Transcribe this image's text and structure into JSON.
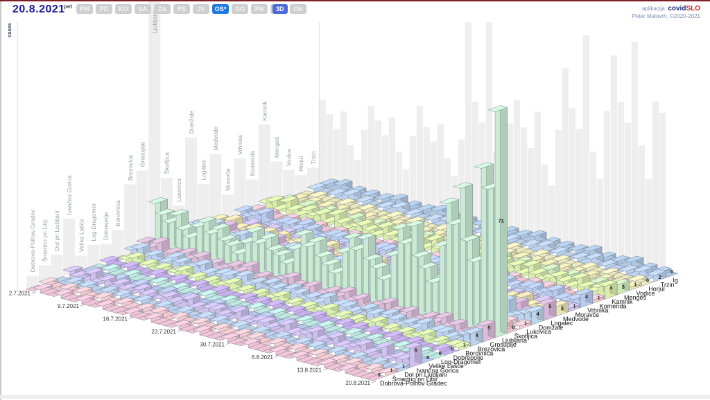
{
  "header": {
    "date": "20.8.2021",
    "weekday": "pet",
    "regions": [
      "PM",
      "PD",
      "KO",
      "SA",
      "ZA",
      "PS",
      "JV",
      "OS*",
      "GO",
      "PN",
      "GŠ",
      "OK"
    ],
    "active_region": "OS*",
    "view_button": "3D",
    "credit_prefix": "aplikacija",
    "credit_brand_covid": "covid",
    "credit_brand_slo": "SLO",
    "credit_line2": "Peter Malovrh, ©2020-2021"
  },
  "chart_data": {
    "type": "bar",
    "projection": "3d",
    "title": "",
    "ylabel": "cases",
    "legend_position": "none",
    "grid": false,
    "date_ticks": [
      {
        "label": "2.7.2021",
        "row": 0
      },
      {
        "label": "9.7.2021",
        "row": 7
      },
      {
        "label": "16.7.2021",
        "row": 14
      },
      {
        "label": "23.7.2021",
        "row": 21
      },
      {
        "label": "30.7.2021",
        "row": 28
      },
      {
        "label": "6.8.2021",
        "row": 35
      },
      {
        "label": "13.8.2021",
        "row": 42
      },
      {
        "label": "20.8.2021",
        "row": 49
      }
    ],
    "municipalities": [
      {
        "name": "Dobrova-Polhov Gradec",
        "color": "#f2c4d8",
        "last_day_value": 0
      },
      {
        "name": "Šmartno pri Litiji",
        "color": "#f6ccd4",
        "last_day_value": 1
      },
      {
        "name": "Dol pri Ljubljani",
        "color": "#bcd2ee",
        "last_day_value": 1
      },
      {
        "name": "Ivančna Gorica",
        "color": "#cfc0ee",
        "last_day_value": 6
      },
      {
        "name": "Velike  Lašče",
        "color": "#b9c8ee",
        "last_day_value": 0
      },
      {
        "name": "Log-Dragomer",
        "color": "#c0e9e4",
        "last_day_value": 0
      },
      {
        "name": "Dobrepolje",
        "color": "#c8b0ee",
        "last_day_value": 0
      },
      {
        "name": "Borovnica",
        "color": "#daf0ac",
        "last_day_value": 1
      },
      {
        "name": "Brezovica",
        "color": "#bcd2ee",
        "last_day_value": 4
      },
      {
        "name": "Grosuplje",
        "color": "#dcbcd8",
        "last_day_value": 5
      },
      {
        "name": "Ljubljana",
        "color": "#c9ebd4",
        "last_day_value": 71
      },
      {
        "name": "Škofljica",
        "color": "#f2c2cc",
        "last_day_value": 0
      },
      {
        "name": "Lukovica",
        "color": "#f6ccd4",
        "last_day_value": 1
      },
      {
        "name": "Domžale",
        "color": "#bcd4ec",
        "last_day_value": 4
      },
      {
        "name": "Logatec",
        "color": "#dab6da",
        "last_day_value": 5
      },
      {
        "name": "Medvode",
        "color": "#ece2b2",
        "last_day_value": 3
      },
      {
        "name": "Moravče",
        "color": "#cfc2ee",
        "last_day_value": 1
      },
      {
        "name": "Vrhnika",
        "color": "#b9cbee",
        "last_day_value": 4
      },
      {
        "name": "Komenda",
        "color": "#f2c6d2",
        "last_day_value": 1
      },
      {
        "name": "Kamnik",
        "color": "#dcedaa",
        "last_day_value": 4
      },
      {
        "name": "Mengeš",
        "color": "#cfe9bc",
        "last_day_value": 3
      },
      {
        "name": "Vodice",
        "color": "#e9e4b2",
        "last_day_value": 1
      },
      {
        "name": "Horjul",
        "color": "#ece9bc",
        "last_day_value": 0
      },
      {
        "name": "Trzin",
        "color": "#bcd2ee",
        "last_day_value": 2
      },
      {
        "name": "Ig",
        "color": "#aec8e4",
        "last_day_value": 0
      }
    ],
    "peak_bar": {
      "municipality": "Ljubljana",
      "date": "20.8.2021",
      "value": 71
    },
    "values_by_day": [
      [
        0,
        1,
        0,
        2,
        0,
        0,
        1,
        0,
        2,
        3,
        14,
        2,
        1,
        3,
        1,
        2,
        0,
        2,
        1,
        2,
        1,
        0,
        0,
        1,
        1
      ],
      [
        1,
        0,
        0,
        1,
        1,
        0,
        0,
        1,
        3,
        2,
        11,
        1,
        0,
        4,
        2,
        1,
        1,
        1,
        0,
        3,
        2,
        1,
        0,
        0,
        0
      ],
      [
        0,
        0,
        1,
        0,
        0,
        1,
        0,
        2,
        1,
        4,
        9,
        3,
        1,
        2,
        0,
        3,
        0,
        2,
        1,
        1,
        0,
        0,
        1,
        0,
        2
      ],
      [
        0,
        1,
        0,
        3,
        0,
        0,
        1,
        0,
        2,
        1,
        12,
        0,
        2,
        5,
        3,
        1,
        1,
        3,
        0,
        4,
        1,
        1,
        0,
        1,
        0
      ],
      [
        1,
        0,
        1,
        1,
        0,
        0,
        0,
        1,
        0,
        2,
        8,
        2,
        0,
        1,
        1,
        0,
        0,
        0,
        0,
        2,
        2,
        0,
        0,
        0,
        1
      ],
      [
        0,
        1,
        0,
        2,
        1,
        1,
        0,
        0,
        1,
        1,
        6,
        1,
        1,
        2,
        0,
        2,
        0,
        1,
        1,
        1,
        0,
        1,
        0,
        2,
        0
      ],
      [
        0,
        0,
        0,
        0,
        0,
        0,
        0,
        1,
        3,
        3,
        10,
        2,
        0,
        3,
        2,
        1,
        1,
        2,
        0,
        3,
        1,
        0,
        1,
        0,
        1
      ],
      [
        1,
        0,
        1,
        2,
        0,
        0,
        1,
        0,
        2,
        2,
        12,
        1,
        1,
        4,
        1,
        2,
        0,
        2,
        1,
        2,
        2,
        1,
        0,
        1,
        0
      ],
      [
        0,
        1,
        0,
        1,
        1,
        0,
        0,
        1,
        1,
        3,
        9,
        2,
        0,
        2,
        2,
        1,
        1,
        1,
        0,
        3,
        1,
        0,
        0,
        0,
        1
      ],
      [
        0,
        0,
        1,
        0,
        0,
        1,
        0,
        2,
        2,
        1,
        11,
        0,
        1,
        3,
        0,
        2,
        0,
        3,
        1,
        1,
        0,
        1,
        1,
        0,
        0
      ],
      [
        1,
        0,
        0,
        2,
        0,
        0,
        1,
        0,
        3,
        2,
        8,
        1,
        2,
        5,
        3,
        0,
        1,
        2,
        0,
        4,
        1,
        0,
        0,
        1,
        2
      ],
      [
        0,
        1,
        0,
        1,
        0,
        0,
        0,
        1,
        1,
        1,
        7,
        2,
        0,
        1,
        1,
        1,
        0,
        0,
        0,
        2,
        2,
        1,
        0,
        0,
        0
      ],
      [
        0,
        0,
        1,
        0,
        1,
        1,
        0,
        0,
        0,
        2,
        5,
        1,
        1,
        2,
        0,
        2,
        0,
        1,
        1,
        1,
        0,
        0,
        0,
        2,
        1
      ],
      [
        0,
        0,
        0,
        1,
        0,
        0,
        1,
        1,
        2,
        3,
        9,
        0,
        0,
        3,
        2,
        1,
        1,
        2,
        0,
        2,
        1,
        1,
        1,
        0,
        0
      ],
      [
        1,
        1,
        0,
        2,
        0,
        0,
        0,
        0,
        2,
        2,
        13,
        2,
        1,
        4,
        1,
        2,
        0,
        2,
        1,
        3,
        2,
        0,
        0,
        1,
        1
      ],
      [
        0,
        0,
        1,
        1,
        1,
        0,
        0,
        1,
        1,
        4,
        10,
        1,
        0,
        2,
        2,
        1,
        1,
        1,
        0,
        2,
        1,
        1,
        0,
        0,
        0
      ],
      [
        0,
        1,
        0,
        0,
        0,
        1,
        1,
        2,
        3,
        1,
        12,
        3,
        1,
        3,
        0,
        3,
        0,
        2,
        1,
        1,
        0,
        0,
        1,
        0,
        2
      ],
      [
        1,
        0,
        0,
        3,
        0,
        0,
        0,
        0,
        1,
        2,
        9,
        0,
        2,
        5,
        3,
        1,
        1,
        3,
        0,
        4,
        1,
        1,
        0,
        1,
        0
      ],
      [
        0,
        0,
        1,
        1,
        0,
        0,
        0,
        1,
        2,
        1,
        8,
        2,
        0,
        1,
        1,
        0,
        0,
        1,
        0,
        2,
        2,
        0,
        0,
        0,
        1
      ],
      [
        0,
        1,
        0,
        0,
        1,
        1,
        0,
        0,
        0,
        2,
        6,
        1,
        1,
        2,
        0,
        2,
        0,
        0,
        1,
        1,
        0,
        1,
        0,
        2,
        0
      ],
      [
        0,
        0,
        0,
        2,
        0,
        0,
        1,
        1,
        3,
        3,
        11,
        2,
        0,
        3,
        2,
        1,
        1,
        2,
        0,
        3,
        1,
        0,
        1,
        0,
        1
      ],
      [
        1,
        0,
        1,
        2,
        0,
        0,
        0,
        0,
        2,
        4,
        16,
        1,
        1,
        4,
        1,
        2,
        0,
        2,
        1,
        2,
        2,
        1,
        0,
        1,
        0
      ],
      [
        0,
        1,
        0,
        1,
        1,
        0,
        1,
        1,
        1,
        2,
        13,
        2,
        0,
        3,
        2,
        1,
        1,
        1,
        0,
        3,
        1,
        0,
        0,
        0,
        1
      ],
      [
        0,
        0,
        1,
        0,
        0,
        1,
        0,
        2,
        3,
        1,
        15,
        0,
        1,
        4,
        0,
        2,
        0,
        3,
        1,
        1,
        0,
        1,
        1,
        0,
        0
      ],
      [
        1,
        0,
        0,
        3,
        0,
        0,
        1,
        0,
        2,
        3,
        11,
        1,
        2,
        5,
        3,
        0,
        1,
        2,
        0,
        4,
        1,
        0,
        0,
        1,
        2
      ],
      [
        0,
        1,
        0,
        1,
        0,
        0,
        0,
        1,
        1,
        1,
        9,
        2,
        0,
        2,
        1,
        1,
        0,
        1,
        0,
        2,
        2,
        1,
        0,
        0,
        0
      ],
      [
        0,
        0,
        1,
        1,
        1,
        1,
        0,
        0,
        2,
        2,
        7,
        1,
        1,
        2,
        0,
        2,
        0,
        0,
        1,
        1,
        0,
        0,
        0,
        2,
        1
      ],
      [
        0,
        0,
        0,
        2,
        0,
        0,
        1,
        1,
        1,
        3,
        14,
        0,
        0,
        3,
        2,
        1,
        1,
        2,
        0,
        2,
        1,
        1,
        1,
        0,
        0
      ],
      [
        1,
        1,
        0,
        2,
        0,
        0,
        0,
        0,
        3,
        2,
        19,
        2,
        1,
        5,
        1,
        2,
        0,
        2,
        1,
        3,
        2,
        0,
        0,
        1,
        1
      ],
      [
        0,
        0,
        1,
        1,
        1,
        0,
        0,
        1,
        1,
        4,
        16,
        1,
        0,
        2,
        2,
        1,
        1,
        1,
        0,
        2,
        1,
        1,
        0,
        0,
        0
      ],
      [
        0,
        1,
        0,
        0,
        0,
        1,
        1,
        2,
        2,
        2,
        20,
        3,
        1,
        4,
        0,
        3,
        0,
        2,
        1,
        1,
        0,
        0,
        1,
        0,
        2
      ],
      [
        1,
        0,
        0,
        3,
        0,
        0,
        0,
        0,
        2,
        3,
        14,
        0,
        2,
        5,
        3,
        1,
        1,
        3,
        0,
        4,
        1,
        1,
        0,
        1,
        0
      ],
      [
        0,
        0,
        1,
        1,
        0,
        0,
        0,
        1,
        1,
        1,
        12,
        2,
        0,
        1,
        1,
        0,
        0,
        1,
        0,
        2,
        2,
        0,
        0,
        0,
        1
      ],
      [
        0,
        1,
        0,
        1,
        1,
        1,
        0,
        0,
        0,
        2,
        9,
        1,
        1,
        2,
        0,
        2,
        0,
        1,
        1,
        1,
        0,
        1,
        0,
        2,
        0
      ],
      [
        0,
        0,
        0,
        2,
        0,
        0,
        1,
        1,
        3,
        3,
        17,
        2,
        0,
        3,
        2,
        1,
        1,
        2,
        0,
        3,
        1,
        0,
        1,
        0,
        1
      ],
      [
        1,
        0,
        1,
        3,
        0,
        0,
        0,
        0,
        2,
        4,
        26,
        1,
        1,
        5,
        1,
        2,
        0,
        2,
        1,
        2,
        2,
        1,
        0,
        1,
        0
      ],
      [
        0,
        1,
        0,
        1,
        1,
        0,
        1,
        1,
        1,
        2,
        22,
        2,
        0,
        3,
        2,
        1,
        1,
        1,
        0,
        3,
        1,
        0,
        0,
        0,
        1
      ],
      [
        0,
        0,
        1,
        0,
        0,
        1,
        0,
        2,
        3,
        1,
        28,
        0,
        1,
        4,
        0,
        2,
        0,
        3,
        1,
        1,
        0,
        1,
        1,
        0,
        0
      ],
      [
        1,
        0,
        0,
        3,
        0,
        0,
        1,
        0,
        2,
        3,
        19,
        1,
        2,
        6,
        3,
        0,
        1,
        2,
        0,
        4,
        1,
        0,
        0,
        1,
        2
      ],
      [
        0,
        1,
        0,
        1,
        0,
        0,
        0,
        1,
        1,
        1,
        16,
        2,
        0,
        2,
        1,
        1,
        0,
        1,
        0,
        2,
        2,
        1,
        0,
        0,
        0
      ],
      [
        0,
        0,
        1,
        1,
        1,
        1,
        0,
        0,
        2,
        2,
        12,
        1,
        1,
        2,
        0,
        2,
        0,
        0,
        1,
        1,
        0,
        0,
        0,
        2,
        1
      ],
      [
        0,
        0,
        0,
        2,
        0,
        0,
        1,
        1,
        1,
        3,
        24,
        0,
        0,
        3,
        2,
        1,
        1,
        2,
        0,
        2,
        1,
        1,
        1,
        0,
        0
      ],
      [
        1,
        1,
        0,
        3,
        0,
        0,
        0,
        0,
        3,
        2,
        38,
        2,
        1,
        5,
        1,
        2,
        0,
        2,
        1,
        3,
        2,
        0,
        0,
        1,
        1
      ],
      [
        0,
        0,
        1,
        1,
        1,
        0,
        0,
        1,
        1,
        4,
        32,
        1,
        0,
        2,
        2,
        1,
        1,
        1,
        0,
        2,
        1,
        1,
        0,
        0,
        0
      ],
      [
        0,
        1,
        0,
        0,
        0,
        1,
        1,
        2,
        2,
        2,
        44,
        3,
        1,
        4,
        0,
        3,
        0,
        2,
        1,
        1,
        0,
        0,
        1,
        0,
        2
      ],
      [
        1,
        0,
        0,
        4,
        0,
        0,
        0,
        0,
        2,
        3,
        28,
        0,
        2,
        5,
        3,
        1,
        1,
        3,
        0,
        4,
        1,
        1,
        0,
        1,
        0
      ],
      [
        0,
        0,
        1,
        1,
        0,
        0,
        0,
        1,
        1,
        1,
        22,
        2,
        0,
        1,
        1,
        0,
        0,
        1,
        0,
        2,
        2,
        0,
        0,
        0,
        1
      ],
      [
        0,
        1,
        0,
        2,
        1,
        1,
        0,
        0,
        0,
        2,
        52,
        1,
        1,
        2,
        0,
        2,
        0,
        1,
        1,
        1,
        0,
        1,
        0,
        2,
        0
      ],
      [
        0,
        0,
        0,
        2,
        0,
        0,
        1,
        1,
        3,
        3,
        46,
        2,
        0,
        3,
        2,
        1,
        1,
        2,
        0,
        3,
        1,
        0,
        1,
        0,
        1
      ],
      [
        0,
        1,
        1,
        6,
        0,
        0,
        0,
        1,
        4,
        5,
        71,
        0,
        1,
        4,
        5,
        3,
        1,
        4,
        1,
        4,
        3,
        1,
        0,
        2,
        0
      ]
    ],
    "background": {
      "back_wall_by_municipality": [
        4,
        6,
        8,
        18,
        5,
        7,
        6,
        9,
        22,
        25,
        85,
        20,
        10,
        30,
        14,
        22,
        8,
        18,
        10,
        26,
        13,
        9,
        6,
        7,
        11
      ],
      "right_wall_by_day": [
        28,
        24,
        20,
        26,
        16,
        12,
        22,
        30,
        26,
        22,
        28,
        18,
        13,
        24,
        34,
        28,
        24,
        30,
        20,
        15,
        27,
        85,
        40,
        34,
        75,
        26,
        20,
        36,
        44,
        36,
        30,
        42,
        26,
        20,
        38,
        58,
        46,
        40,
        70,
        34,
        26,
        48,
        66,
        52,
        46,
        72,
        40,
        30,
        55,
        52
      ]
    }
  }
}
